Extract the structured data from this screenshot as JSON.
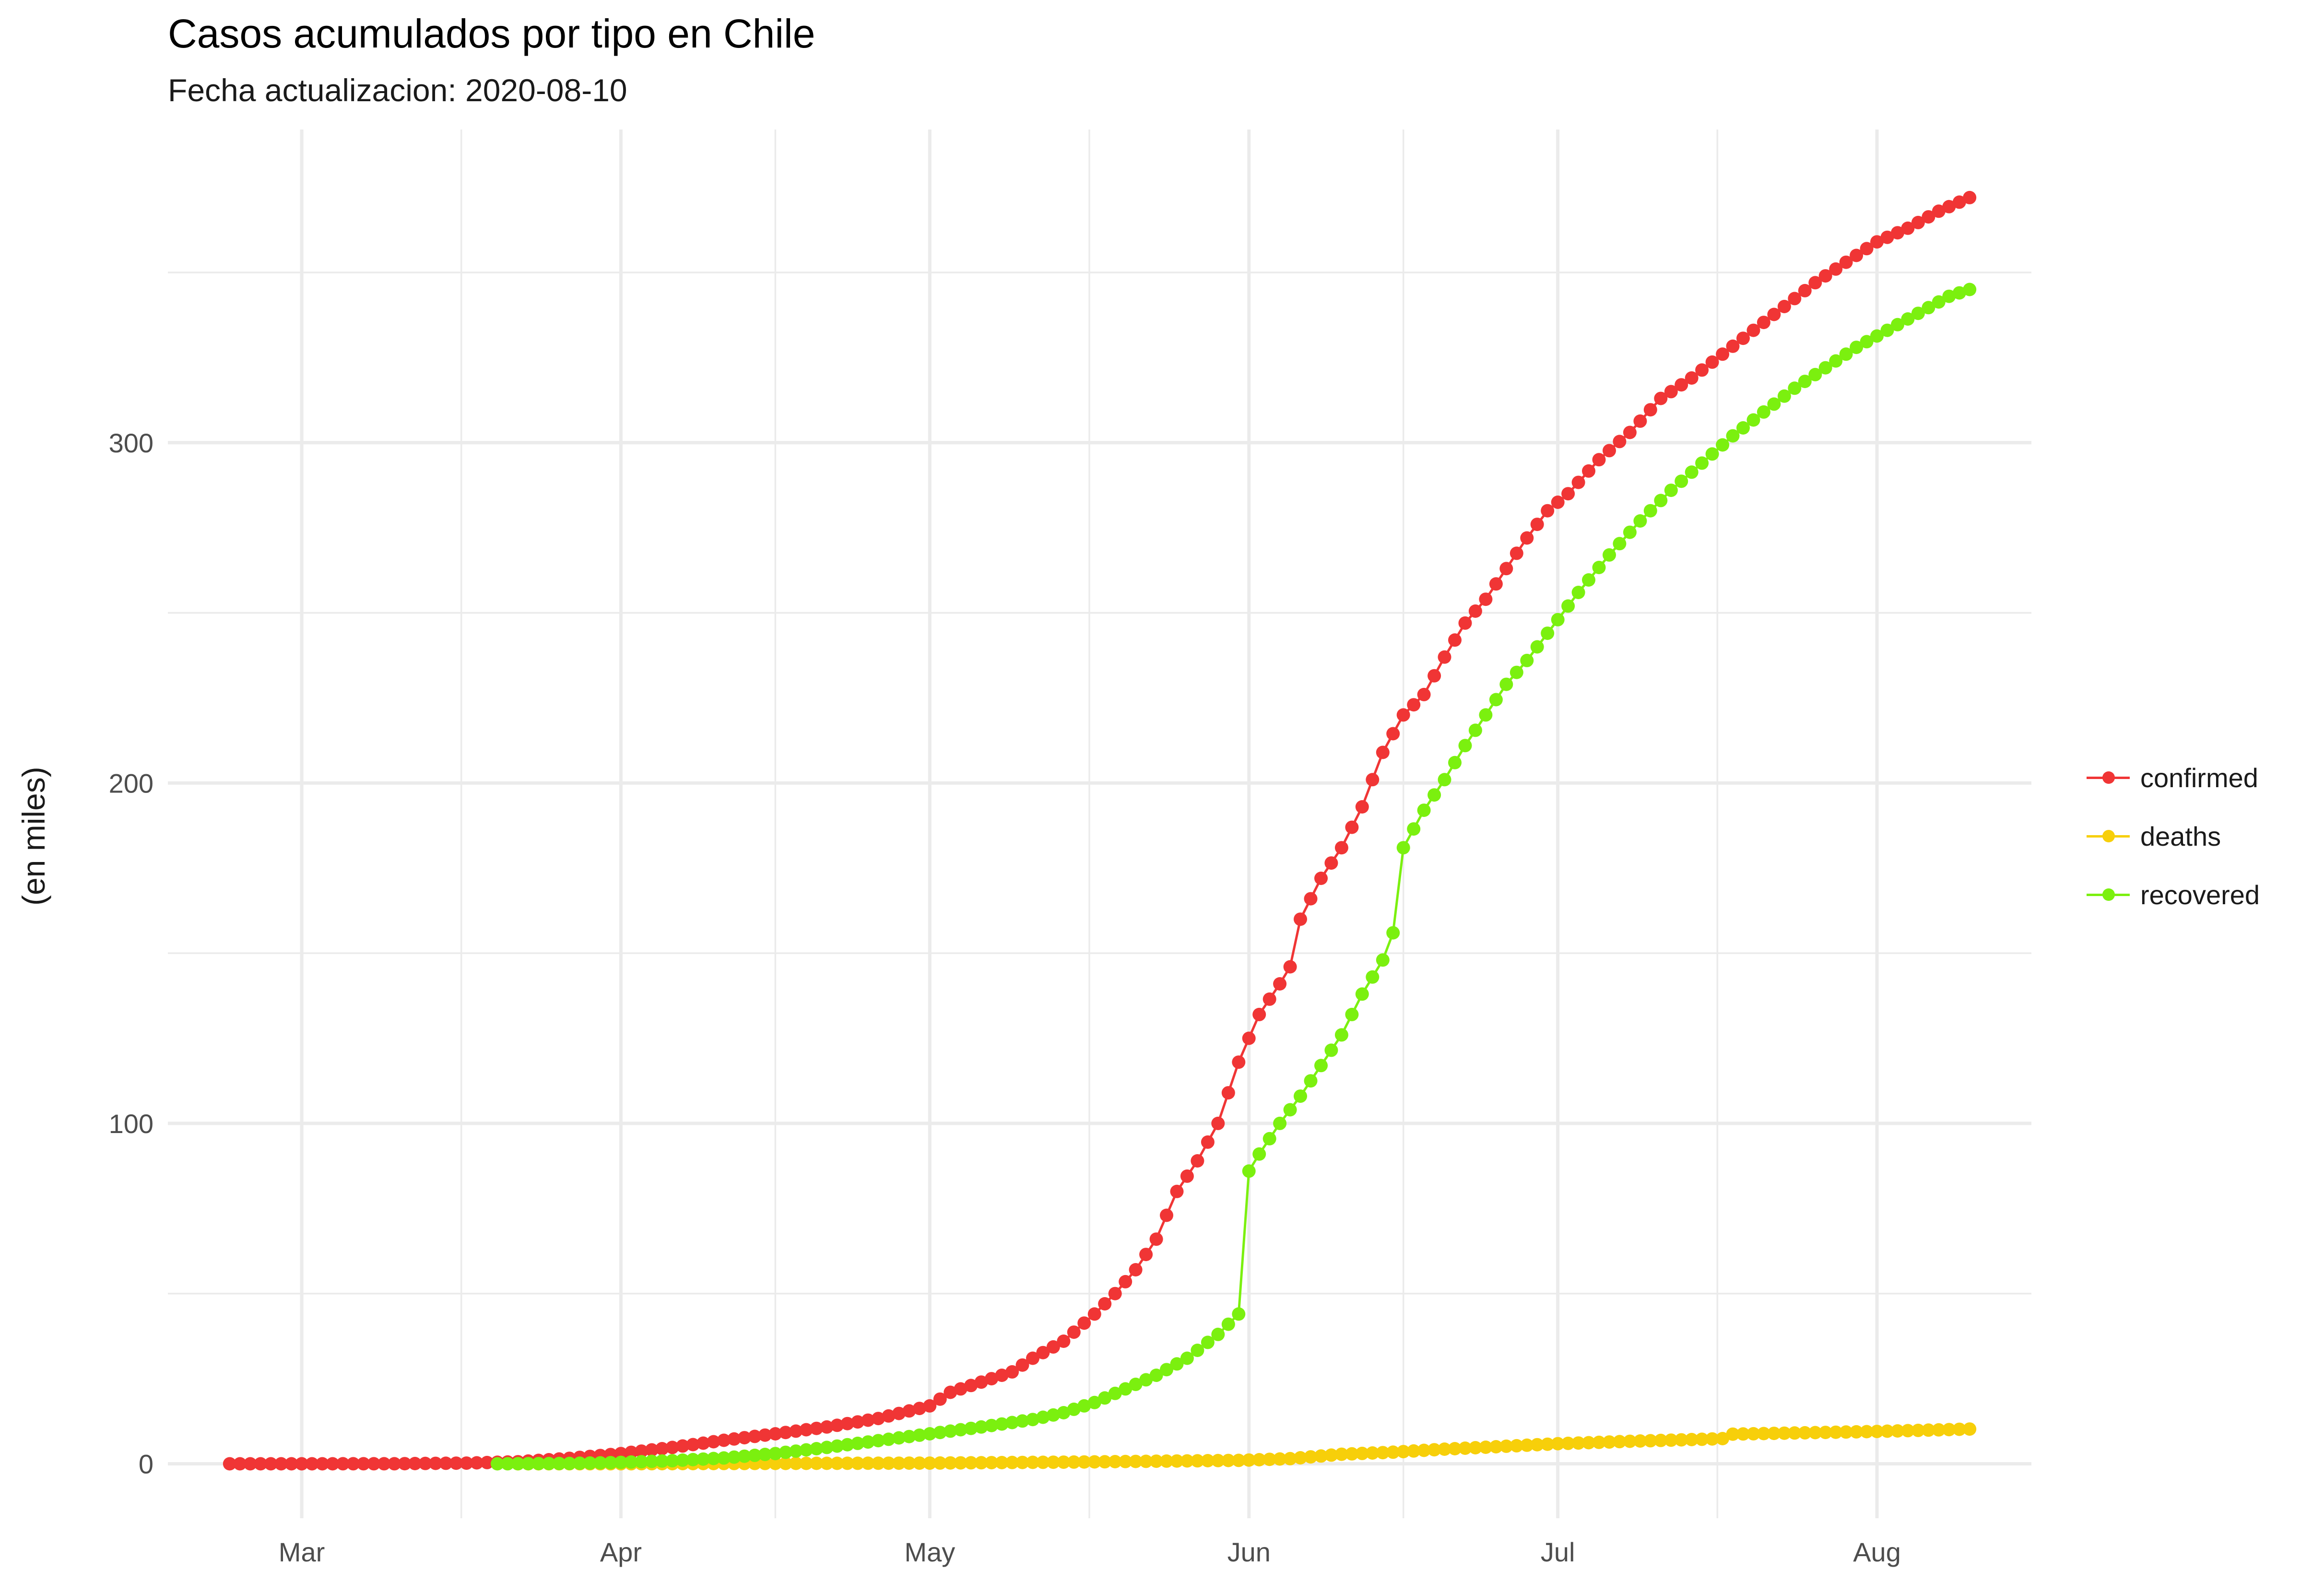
{
  "chart_data": {
    "type": "line",
    "title": "Casos acumulados por tipo en Chile",
    "subtitle": "Fecha actualizacion: 2020-08-10",
    "xlabel": "",
    "ylabel": "(en miles)",
    "x_ticks": [
      {
        "label": "Mar",
        "date": "2020-03-01"
      },
      {
        "label": "Apr",
        "date": "2020-04-01"
      },
      {
        "label": "May",
        "date": "2020-05-01"
      },
      {
        "label": "Jun",
        "date": "2020-06-01"
      },
      {
        "label": "Jul",
        "date": "2020-07-01"
      },
      {
        "label": "Aug",
        "date": "2020-08-01"
      }
    ],
    "y_ticks": [
      0,
      100,
      200,
      300
    ],
    "xlim": [
      "2020-02-17",
      "2020-08-16"
    ],
    "ylim": [
      -16,
      392
    ],
    "grid": true,
    "legend_position": "right",
    "series": [
      {
        "name": "confirmed",
        "color": "#f03535",
        "points": [
          [
            "2020-02-23",
            0
          ],
          [
            "2020-03-03",
            0.001
          ],
          [
            "2020-03-10",
            0.013
          ],
          [
            "2020-03-17",
            0.2
          ],
          [
            "2020-03-22",
            0.6
          ],
          [
            "2020-03-27",
            1.6
          ],
          [
            "2020-04-01",
            3.0
          ],
          [
            "2020-04-06",
            4.8
          ],
          [
            "2020-04-11",
            6.9
          ],
          [
            "2020-04-16",
            8.8
          ],
          [
            "2020-04-21",
            10.8
          ],
          [
            "2020-04-26",
            13.3
          ],
          [
            "2020-05-01",
            17.0
          ],
          [
            "2020-05-03",
            21.0
          ],
          [
            "2020-05-06",
            24.0
          ],
          [
            "2020-05-09",
            27.0
          ],
          [
            "2020-05-11",
            31.0
          ],
          [
            "2020-05-14",
            36.0
          ],
          [
            "2020-05-17",
            44.0
          ],
          [
            "2020-05-19",
            50.0
          ],
          [
            "2020-05-21",
            57.0
          ],
          [
            "2020-05-23",
            66.0
          ],
          [
            "2020-05-25",
            80.0
          ],
          [
            "2020-05-27",
            89.0
          ],
          [
            "2020-05-29",
            100.0
          ],
          [
            "2020-05-31",
            118.0
          ],
          [
            "2020-06-02",
            132.0
          ],
          [
            "2020-06-04",
            141.0
          ],
          [
            "2020-06-05",
            146.0
          ],
          [
            "2020-06-06",
            160.0
          ],
          [
            "2020-06-08",
            172.0
          ],
          [
            "2020-06-10",
            181.0
          ],
          [
            "2020-06-12",
            193.0
          ],
          [
            "2020-06-14",
            209.0
          ],
          [
            "2020-06-16",
            220.0
          ],
          [
            "2020-06-18",
            226.0
          ],
          [
            "2020-06-20",
            237.0
          ],
          [
            "2020-06-22",
            247.0
          ],
          [
            "2020-06-24",
            254.0
          ],
          [
            "2020-06-26",
            263.0
          ],
          [
            "2020-06-28",
            272.0
          ],
          [
            "2020-06-30",
            280.0
          ],
          [
            "2020-07-02",
            285.0
          ],
          [
            "2020-07-05",
            295.0
          ],
          [
            "2020-07-08",
            303.0
          ],
          [
            "2020-07-11",
            313.0
          ],
          [
            "2020-07-14",
            319.0
          ],
          [
            "2020-07-17",
            326.0
          ],
          [
            "2020-07-20",
            333.0
          ],
          [
            "2020-07-23",
            340.0
          ],
          [
            "2020-07-26",
            347.0
          ],
          [
            "2020-07-29",
            353.0
          ],
          [
            "2020-08-01",
            359.0
          ],
          [
            "2020-08-04",
            363.0
          ],
          [
            "2020-08-07",
            368.0
          ],
          [
            "2020-08-10",
            372.0
          ]
        ]
      },
      {
        "name": "deaths",
        "color": "#f7cf0a",
        "points": [
          [
            "2020-03-22",
            0.0
          ],
          [
            "2020-04-01",
            0.01
          ],
          [
            "2020-04-15",
            0.1
          ],
          [
            "2020-05-01",
            0.2
          ],
          [
            "2020-05-15",
            0.5
          ],
          [
            "2020-05-31",
            1.0
          ],
          [
            "2020-06-05",
            1.5
          ],
          [
            "2020-06-10",
            2.8
          ],
          [
            "2020-06-15",
            3.4
          ],
          [
            "2020-06-20",
            4.3
          ],
          [
            "2020-06-25",
            5.0
          ],
          [
            "2020-07-01",
            5.9
          ],
          [
            "2020-07-08",
            6.6
          ],
          [
            "2020-07-15",
            7.2
          ],
          [
            "2020-07-17",
            7.4
          ],
          [
            "2020-07-18",
            8.7
          ],
          [
            "2020-07-25",
            9.1
          ],
          [
            "2020-08-01",
            9.5
          ],
          [
            "2020-08-10",
            10.2
          ]
        ]
      },
      {
        "name": "recovered",
        "color": "#7bf00f",
        "points": [
          [
            "2020-03-20",
            0.0
          ],
          [
            "2020-03-27",
            0.1
          ],
          [
            "2020-04-01",
            0.4
          ],
          [
            "2020-04-06",
            0.9
          ],
          [
            "2020-04-11",
            1.7
          ],
          [
            "2020-04-16",
            3.0
          ],
          [
            "2020-04-21",
            4.8
          ],
          [
            "2020-04-26",
            6.8
          ],
          [
            "2020-05-01",
            8.8
          ],
          [
            "2020-05-06",
            10.8
          ],
          [
            "2020-05-11",
            13.0
          ],
          [
            "2020-05-14",
            15.0
          ],
          [
            "2020-05-17",
            18.0
          ],
          [
            "2020-05-20",
            22.0
          ],
          [
            "2020-05-23",
            26.0
          ],
          [
            "2020-05-26",
            31.0
          ],
          [
            "2020-05-29",
            38.0
          ],
          [
            "2020-05-31",
            44.0
          ],
          [
            "2020-06-01",
            86.0
          ],
          [
            "2020-06-02",
            91.0
          ],
          [
            "2020-06-04",
            100.0
          ],
          [
            "2020-06-06",
            108.0
          ],
          [
            "2020-06-08",
            117.0
          ],
          [
            "2020-06-10",
            126.0
          ],
          [
            "2020-06-12",
            138.0
          ],
          [
            "2020-06-14",
            148.0
          ],
          [
            "2020-06-15",
            156.0
          ],
          [
            "2020-06-16",
            181.0
          ],
          [
            "2020-06-18",
            192.0
          ],
          [
            "2020-06-20",
            201.0
          ],
          [
            "2020-06-22",
            211.0
          ],
          [
            "2020-06-24",
            220.0
          ],
          [
            "2020-06-26",
            229.0
          ],
          [
            "2020-06-28",
            236.0
          ],
          [
            "2020-06-30",
            244.0
          ],
          [
            "2020-07-03",
            256.0
          ],
          [
            "2020-07-06",
            267.0
          ],
          [
            "2020-07-09",
            277.0
          ],
          [
            "2020-07-12",
            286.0
          ],
          [
            "2020-07-15",
            294.0
          ],
          [
            "2020-07-18",
            302.0
          ],
          [
            "2020-07-21",
            309.0
          ],
          [
            "2020-07-24",
            316.0
          ],
          [
            "2020-07-27",
            322.0
          ],
          [
            "2020-07-30",
            328.0
          ],
          [
            "2020-08-02",
            333.0
          ],
          [
            "2020-08-05",
            338.0
          ],
          [
            "2020-08-08",
            343.0
          ],
          [
            "2020-08-10",
            345.0
          ]
        ]
      }
    ]
  }
}
